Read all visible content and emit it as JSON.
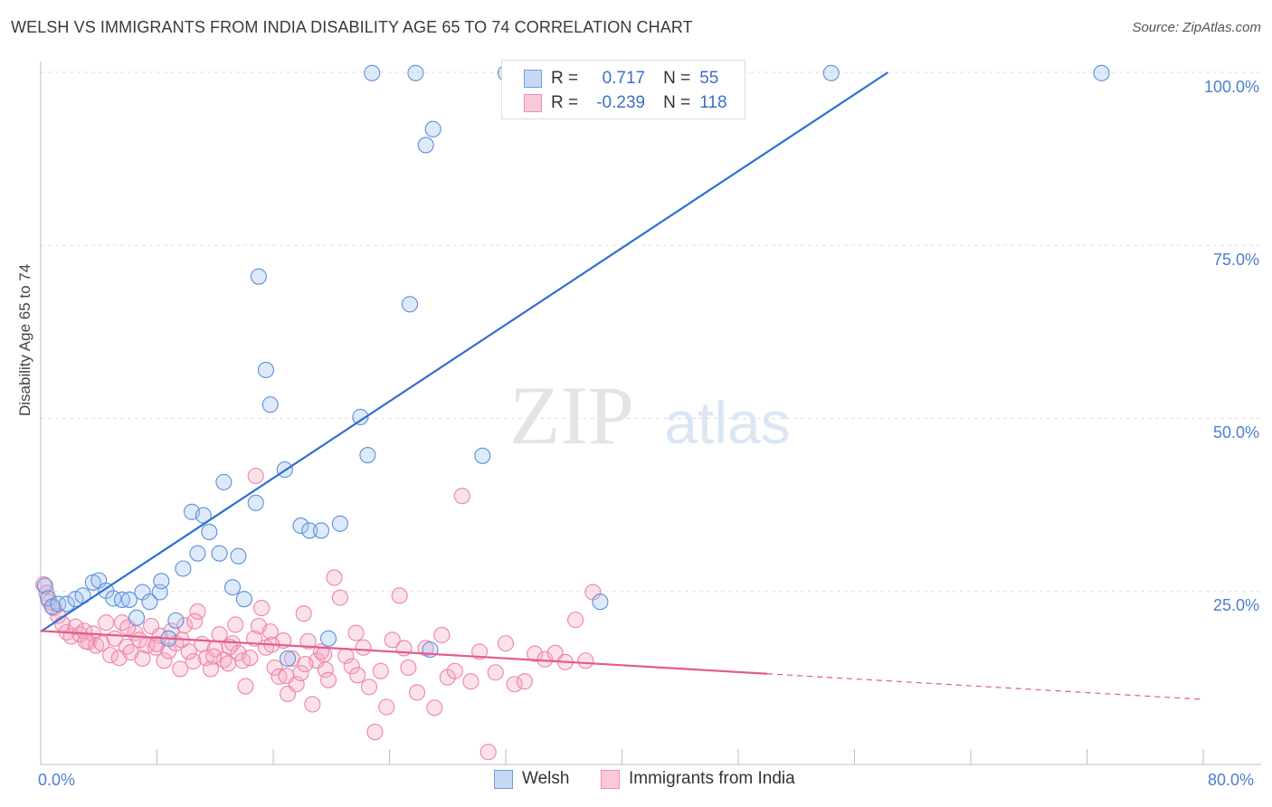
{
  "title": "WELSH VS IMMIGRANTS FROM INDIA DISABILITY AGE 65 TO 74 CORRELATION CHART",
  "source": "Source: ZipAtlas.com",
  "watermark": {
    "zip": "ZIP",
    "atlas": "atlas"
  },
  "legend": {
    "r_label": "R =",
    "n_label": "N =",
    "rows": [
      {
        "r": "0.717",
        "n": "55"
      },
      {
        "r": "-0.239",
        "n": "118"
      }
    ]
  },
  "bottom_legend": [
    "Welsh",
    "Immigrants from India"
  ],
  "chart_data": {
    "type": "scatter",
    "title": "WELSH VS IMMIGRANTS FROM INDIA DISABILITY AGE 65 TO 74 CORRELATION CHART",
    "xlabel": "",
    "ylabel": "Disability Age 65 to 74",
    "xlim": [
      0,
      80
    ],
    "ylim": [
      0,
      100
    ],
    "x_tick_labels": [
      "0.0%",
      "80.0%"
    ],
    "y_tick_labels": [
      "25.0%",
      "50.0%",
      "75.0%",
      "100.0%"
    ],
    "y_ticks": [
      25,
      50,
      75,
      100
    ],
    "grid": true,
    "legend_position": "top-center",
    "colors": {
      "welsh": "#5b8fd9",
      "india": "#ee84a8",
      "welsh_line": "#2f6fd0",
      "india_line": "#e45a8c",
      "tick_text": "#4a7fcf"
    },
    "series": [
      {
        "name": "Welsh",
        "r": 0.717,
        "n": 55,
        "trend": {
          "x": [
            0,
            58.3
          ],
          "y": [
            19.2,
            100
          ]
        },
        "points": [
          [
            0.3,
            25.8
          ],
          [
            0.5,
            24.0
          ],
          [
            0.8,
            22.8
          ],
          [
            1.2,
            23.2
          ],
          [
            1.8,
            23.2
          ],
          [
            2.4,
            23.9
          ],
          [
            2.9,
            24.4
          ],
          [
            3.6,
            26.3
          ],
          [
            4.0,
            26.6
          ],
          [
            4.5,
            25.1
          ],
          [
            5.0,
            24.0
          ],
          [
            5.6,
            23.8
          ],
          [
            6.1,
            23.8
          ],
          [
            6.6,
            21.2
          ],
          [
            7.0,
            24.9
          ],
          [
            7.5,
            23.5
          ],
          [
            8.2,
            24.9
          ],
          [
            8.3,
            26.5
          ],
          [
            8.8,
            18.2
          ],
          [
            9.3,
            20.8
          ],
          [
            9.8,
            28.3
          ],
          [
            10.4,
            36.5
          ],
          [
            10.8,
            30.5
          ],
          [
            11.2,
            36.0
          ],
          [
            11.6,
            33.6
          ],
          [
            12.3,
            30.5
          ],
          [
            12.6,
            40.8
          ],
          [
            13.2,
            25.6
          ],
          [
            13.6,
            30.1
          ],
          [
            14.0,
            23.9
          ],
          [
            14.8,
            37.8
          ],
          [
            15.0,
            70.5
          ],
          [
            15.5,
            57.0
          ],
          [
            15.8,
            52.0
          ],
          [
            16.8,
            42.6
          ],
          [
            17.0,
            15.3
          ],
          [
            17.9,
            34.5
          ],
          [
            18.5,
            33.8
          ],
          [
            19.3,
            33.8
          ],
          [
            19.8,
            18.2
          ],
          [
            20.6,
            34.8
          ],
          [
            22.0,
            50.2
          ],
          [
            22.5,
            44.7
          ],
          [
            22.8,
            99.9
          ],
          [
            25.4,
            66.5
          ],
          [
            25.8,
            99.9
          ],
          [
            26.5,
            89.5
          ],
          [
            26.8,
            16.6
          ],
          [
            27.0,
            91.8
          ],
          [
            30.4,
            44.6
          ],
          [
            32.0,
            99.9
          ],
          [
            38.5,
            23.5
          ],
          [
            40.3,
            99.9
          ],
          [
            54.4,
            99.9
          ],
          [
            73.0,
            99.9
          ]
        ]
      },
      {
        "name": "Immigrants from India",
        "r": -0.239,
        "n": 118,
        "trend": {
          "x": [
            0,
            50
          ],
          "y": [
            19.3,
            13.1
          ]
        },
        "trend_dashed": {
          "x": [
            50,
            80
          ],
          "y": [
            13.1,
            9.4
          ]
        },
        "points": [
          [
            0.2,
            26.0
          ],
          [
            0.4,
            24.8
          ],
          [
            0.6,
            23.5
          ],
          [
            0.9,
            22.6
          ],
          [
            1.2,
            21.5
          ],
          [
            1.5,
            20.3
          ],
          [
            1.8,
            19.1
          ],
          [
            2.1,
            18.5
          ],
          [
            2.4,
            19.9
          ],
          [
            2.7,
            18.8
          ],
          [
            3.0,
            19.3
          ],
          [
            3.3,
            17.7
          ],
          [
            3.6,
            18.9
          ],
          [
            3.8,
            17.2
          ],
          [
            4.2,
            17.5
          ],
          [
            4.5,
            20.5
          ],
          [
            4.8,
            15.8
          ],
          [
            5.1,
            18.2
          ],
          [
            5.4,
            15.4
          ],
          [
            5.6,
            20.5
          ],
          [
            5.9,
            17.0
          ],
          [
            6.2,
            16.2
          ],
          [
            6.5,
            19.0
          ],
          [
            6.8,
            18.0
          ],
          [
            7.0,
            15.3
          ],
          [
            7.3,
            17.2
          ],
          [
            7.6,
            20.0
          ],
          [
            7.9,
            16.9
          ],
          [
            8.2,
            18.6
          ],
          [
            8.5,
            15.0
          ],
          [
            8.8,
            16.4
          ],
          [
            9.0,
            19.3
          ],
          [
            9.3,
            17.5
          ],
          [
            9.6,
            13.8
          ],
          [
            9.9,
            20.1
          ],
          [
            10.2,
            16.3
          ],
          [
            10.5,
            14.9
          ],
          [
            10.8,
            22.1
          ],
          [
            11.1,
            17.4
          ],
          [
            11.4,
            15.4
          ],
          [
            11.7,
            13.8
          ],
          [
            12.0,
            16.7
          ],
          [
            12.3,
            18.8
          ],
          [
            12.6,
            15.1
          ],
          [
            12.9,
            14.6
          ],
          [
            13.2,
            17.5
          ],
          [
            13.4,
            20.2
          ],
          [
            13.6,
            16.1
          ],
          [
            13.9,
            15.0
          ],
          [
            14.1,
            11.3
          ],
          [
            14.4,
            15.4
          ],
          [
            14.7,
            18.2
          ],
          [
            15.0,
            20.0
          ],
          [
            15.2,
            22.6
          ],
          [
            15.5,
            16.9
          ],
          [
            15.8,
            19.2
          ],
          [
            16.1,
            14.0
          ],
          [
            16.4,
            12.7
          ],
          [
            16.7,
            17.9
          ],
          [
            17.0,
            10.2
          ],
          [
            17.3,
            15.3
          ],
          [
            17.6,
            11.6
          ],
          [
            17.9,
            13.2
          ],
          [
            18.1,
            21.8
          ],
          [
            18.4,
            17.8
          ],
          [
            18.7,
            8.7
          ],
          [
            19.0,
            15.0
          ],
          [
            19.3,
            16.3
          ],
          [
            19.6,
            13.7
          ],
          [
            19.8,
            12.2
          ],
          [
            20.2,
            27.0
          ],
          [
            20.6,
            24.1
          ],
          [
            21.0,
            15.7
          ],
          [
            21.4,
            14.2
          ],
          [
            21.8,
            12.9
          ],
          [
            22.2,
            16.9
          ],
          [
            22.6,
            11.2
          ],
          [
            23.0,
            4.7
          ],
          [
            23.4,
            13.5
          ],
          [
            23.8,
            8.3
          ],
          [
            24.2,
            18.0
          ],
          [
            24.7,
            24.4
          ],
          [
            25.3,
            14.0
          ],
          [
            25.9,
            10.4
          ],
          [
            26.5,
            16.8
          ],
          [
            27.1,
            8.2
          ],
          [
            27.6,
            18.7
          ],
          [
            28.0,
            12.6
          ],
          [
            28.5,
            13.5
          ],
          [
            29.0,
            38.8
          ],
          [
            29.6,
            12.0
          ],
          [
            30.2,
            16.3
          ],
          [
            30.8,
            1.8
          ],
          [
            31.3,
            13.3
          ],
          [
            32.0,
            17.5
          ],
          [
            32.6,
            11.6
          ],
          [
            33.3,
            12.0
          ],
          [
            34.0,
            16.0
          ],
          [
            34.7,
            15.2
          ],
          [
            35.4,
            16.1
          ],
          [
            36.1,
            14.8
          ],
          [
            36.8,
            20.9
          ],
          [
            37.5,
            15.0
          ],
          [
            38.0,
            24.9
          ],
          [
            10.6,
            20.7
          ],
          [
            11.9,
            15.6
          ],
          [
            13.0,
            17.0
          ],
          [
            15.9,
            17.3
          ],
          [
            16.9,
            12.8
          ],
          [
            18.2,
            14.5
          ],
          [
            19.5,
            15.9
          ],
          [
            21.7,
            19.0
          ],
          [
            25.0,
            16.8
          ],
          [
            14.8,
            41.7
          ],
          [
            3.1,
            17.8
          ],
          [
            6.0,
            19.8
          ],
          [
            8.0,
            17.4
          ],
          [
            9.7,
            18.0
          ]
        ]
      }
    ]
  }
}
